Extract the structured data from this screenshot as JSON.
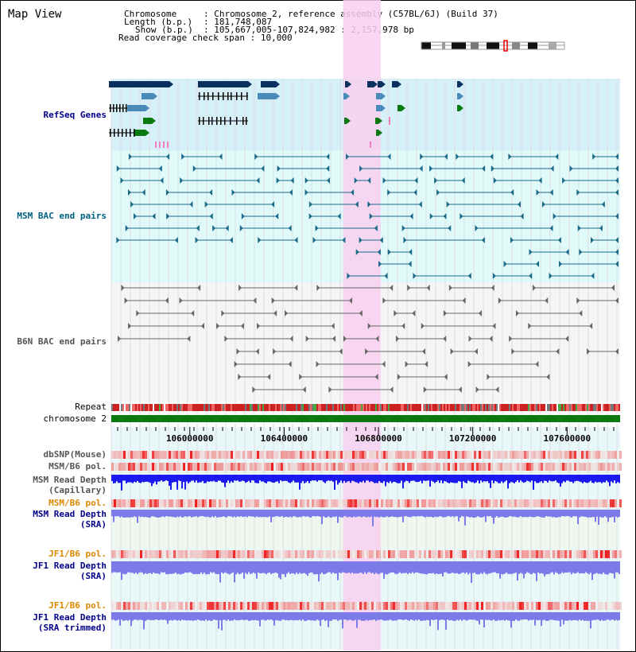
{
  "title": "Map View",
  "info": {
    "chromosome_key": "Chromosome",
    "chromosome_val": "Chromosome 2, reference assembly (C57BL/6J) (Build 37)",
    "length_key": "Length (b.p.)",
    "length_val": "181,748,087",
    "show_key": "Show (b.p.)",
    "show_val": "105,667,005-107,824,982 : 2,157,978 bp",
    "coverage_key": "Read coverage check span",
    "coverage_val": "10,000"
  },
  "tracks": {
    "refseq": "RefSeq Genes",
    "msm_bac": "MSM BAC end pairs",
    "b6n_bac": "B6N BAC end pairs",
    "repeat": "Repeat",
    "chromosome": "chromosome 2",
    "dbsnp": "dbSNP(Mouse)",
    "msm_b6_pol_1": "MSM/B6 pol.",
    "msm_depth_cap_1": "MSM Read Depth",
    "msm_depth_cap_2": "(Capillary)",
    "msm_b6_pol_2": "MSM/B6 pol.",
    "msm_depth_sra_1": "MSM Read Depth",
    "msm_depth_sra_2": "(SRA)",
    "jf1_b6_pol_1": "JF1/B6 pol.",
    "jf1_depth_sra_1": "JF1 Read Depth",
    "jf1_depth_sra_2": "(SRA)",
    "jf1_b6_pol_2": "JF1/B6 pol.",
    "jf1_depth_trim_1": "JF1 Read Depth",
    "jf1_depth_trim_2": "(SRA trimmed)"
  },
  "axis": {
    "ticks": [
      106000000,
      106400000,
      106800000,
      107200000,
      107600000
    ],
    "tick_labels": [
      "106000000",
      "106400000",
      "106800000",
      "107200000",
      "107600000"
    ],
    "range_start": 105667005,
    "range_end": 107824982,
    "highlight_start": 106650000,
    "highlight_end": 106810000
  },
  "colors": {
    "refseq_bg": "#d6f0fa",
    "msm_bg": "#e0fafa",
    "b6n_bg": "#f5f5f5",
    "highlight": "#f8d0f0",
    "gene_navy": "#0a3060",
    "gene_blue": "#4a8ab8",
    "gene_green": "#0a7a10",
    "msm_pair": "#1a6a88",
    "b6n_pair": "#666666",
    "chromosome_bar": "#0a7a10",
    "depth_capillary": "#1a1aee",
    "depth_sra": "#7a7ae8",
    "label_blue": "#00008b",
    "label_orange": "#dd8800"
  }
}
